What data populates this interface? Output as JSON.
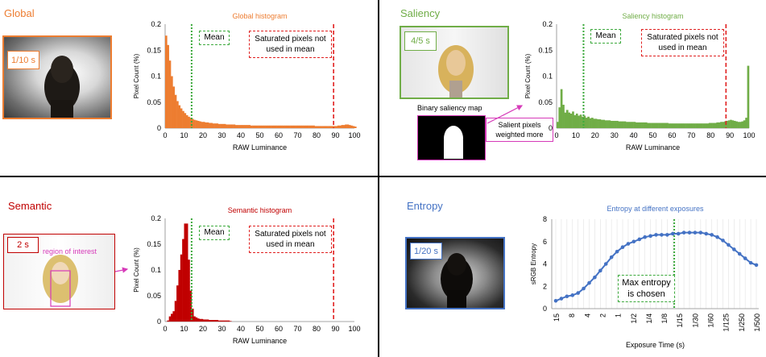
{
  "colors": {
    "global": "#ED7D31",
    "saliency": "#70AD47",
    "semantic": "#C00000",
    "entropy": "#4472C4",
    "magenta": "#D63AB9",
    "mean_line": "#3DAA3D",
    "saturation_line": "#E02020"
  },
  "global": {
    "title": "Global",
    "exposure": "1/10 s",
    "chart_title": "Global histogram",
    "mean_label": "Mean",
    "saturated_label_line1": "Saturated pixels not",
    "saturated_label_line2": "used in mean"
  },
  "saliency": {
    "title": "Saliency",
    "exposure": "4/5 s",
    "map_label": "Binary saliency map",
    "salient_line1": "Salient pixels",
    "salient_line2": "weighted more",
    "chart_title": "Saliency histogram",
    "mean_label": "Mean",
    "saturated_label_line1": "Saturated pixels not",
    "saturated_label_line2": "used in mean"
  },
  "semantic": {
    "title": "Semantic",
    "exposure": "2 s",
    "roi_label": "region of interest",
    "chart_title": "Semantic histogram",
    "mean_label": "Mean",
    "saturated_label_line1": "Saturated pixels not",
    "saturated_label_line2": "used in mean"
  },
  "entropy": {
    "title": "Entropy",
    "exposure": "1/20 s",
    "chart_title": "Entropy at different exposures",
    "max_label_line1": "Max entropy",
    "max_label_line2": "is chosen"
  },
  "chart_data": [
    {
      "type": "bar",
      "title": "Global histogram",
      "xlabel": "RAW Luminance",
      "ylabel": "Pixel Count (%)",
      "xlim": [
        0,
        100
      ],
      "ylim": [
        0,
        0.2
      ],
      "xticks": [
        0,
        10,
        20,
        30,
        40,
        50,
        60,
        70,
        80,
        90,
        100
      ],
      "yticks": [
        0,
        0.05,
        0.1,
        0.15,
        0.2
      ],
      "mean": 14,
      "saturation_threshold": 89,
      "x": [
        0,
        1,
        2,
        3,
        4,
        5,
        6,
        7,
        8,
        9,
        10,
        11,
        12,
        13,
        14,
        15,
        16,
        17,
        18,
        19,
        20,
        21,
        22,
        23,
        24,
        25,
        26,
        27,
        28,
        29,
        30,
        31,
        32,
        33,
        34,
        35,
        36,
        37,
        38,
        39,
        40,
        41,
        42,
        43,
        44,
        45,
        46,
        47,
        48,
        49,
        50,
        51,
        52,
        53,
        54,
        55,
        56,
        57,
        58,
        59,
        60,
        61,
        62,
        63,
        64,
        65,
        66,
        67,
        68,
        69,
        70,
        71,
        72,
        73,
        74,
        75,
        76,
        77,
        78,
        79,
        80,
        81,
        82,
        83,
        84,
        85,
        86,
        87,
        88,
        89,
        90,
        91,
        92,
        93,
        94,
        95,
        96,
        97,
        98,
        99,
        100
      ],
      "values": [
        0.178,
        0.16,
        0.13,
        0.1,
        0.08,
        0.064,
        0.052,
        0.044,
        0.038,
        0.033,
        0.029,
        0.025,
        0.022,
        0.02,
        0.018,
        0.016,
        0.015,
        0.014,
        0.013,
        0.012,
        0.012,
        0.011,
        0.011,
        0.01,
        0.01,
        0.009,
        0.009,
        0.009,
        0.008,
        0.008,
        0.008,
        0.008,
        0.007,
        0.007,
        0.007,
        0.007,
        0.007,
        0.006,
        0.006,
        0.006,
        0.006,
        0.006,
        0.006,
        0.006,
        0.006,
        0.005,
        0.005,
        0.005,
        0.005,
        0.005,
        0.005,
        0.005,
        0.005,
        0.005,
        0.005,
        0.005,
        0.005,
        0.005,
        0.005,
        0.005,
        0.005,
        0.005,
        0.005,
        0.005,
        0.005,
        0.005,
        0.005,
        0.005,
        0.005,
        0.005,
        0.005,
        0.005,
        0.005,
        0.005,
        0.005,
        0.005,
        0.005,
        0.005,
        0.005,
        0.004,
        0.004,
        0.004,
        0.004,
        0.004,
        0.004,
        0.004,
        0.004,
        0.004,
        0.004,
        0.004,
        0.004,
        0.005,
        0.005,
        0.006,
        0.006,
        0.007,
        0.007,
        0.006,
        0.005,
        0.004,
        0.003
      ]
    },
    {
      "type": "bar",
      "title": "Saliency histogram",
      "xlabel": "RAW Luminance",
      "ylabel": "Pixel Count (%)",
      "xlim": [
        0,
        100
      ],
      "ylim": [
        0,
        0.2
      ],
      "xticks": [
        0,
        10,
        20,
        30,
        40,
        50,
        60,
        70,
        80,
        90,
        100
      ],
      "yticks": [
        0,
        0.05,
        0.1,
        0.15,
        0.2
      ],
      "mean": 14,
      "saturation_threshold": 88,
      "x": [
        0,
        1,
        2,
        3,
        4,
        5,
        6,
        7,
        8,
        9,
        10,
        11,
        12,
        13,
        14,
        15,
        16,
        17,
        18,
        19,
        20,
        21,
        22,
        23,
        24,
        25,
        26,
        27,
        28,
        29,
        30,
        31,
        32,
        33,
        34,
        35,
        36,
        37,
        38,
        39,
        40,
        41,
        42,
        43,
        44,
        45,
        46,
        47,
        48,
        49,
        50,
        51,
        52,
        53,
        54,
        55,
        56,
        57,
        58,
        59,
        60,
        61,
        62,
        63,
        64,
        65,
        66,
        67,
        68,
        69,
        70,
        71,
        72,
        73,
        74,
        75,
        76,
        77,
        78,
        79,
        80,
        81,
        82,
        83,
        84,
        85,
        86,
        87,
        88,
        89,
        90,
        91,
        92,
        93,
        94,
        95,
        96,
        97,
        98,
        99,
        100
      ],
      "values": [
        0.012,
        0.04,
        0.075,
        0.045,
        0.03,
        0.035,
        0.03,
        0.028,
        0.032,
        0.025,
        0.028,
        0.024,
        0.026,
        0.022,
        0.024,
        0.02,
        0.022,
        0.019,
        0.02,
        0.018,
        0.018,
        0.017,
        0.017,
        0.016,
        0.016,
        0.015,
        0.015,
        0.015,
        0.014,
        0.014,
        0.014,
        0.014,
        0.013,
        0.013,
        0.013,
        0.013,
        0.012,
        0.012,
        0.012,
        0.012,
        0.012,
        0.011,
        0.011,
        0.011,
        0.011,
        0.011,
        0.011,
        0.01,
        0.01,
        0.01,
        0.01,
        0.01,
        0.01,
        0.01,
        0.01,
        0.01,
        0.01,
        0.01,
        0.009,
        0.009,
        0.009,
        0.009,
        0.009,
        0.009,
        0.009,
        0.009,
        0.009,
        0.009,
        0.009,
        0.009,
        0.009,
        0.009,
        0.009,
        0.009,
        0.009,
        0.009,
        0.009,
        0.009,
        0.009,
        0.01,
        0.01,
        0.01,
        0.01,
        0.011,
        0.011,
        0.012,
        0.012,
        0.013,
        0.014,
        0.015,
        0.016,
        0.015,
        0.014,
        0.013,
        0.012,
        0.012,
        0.013,
        0.015,
        0.02,
        0.12,
        0.0
      ]
    },
    {
      "type": "bar",
      "title": "Semantic histogram",
      "xlabel": "RAW Luminance",
      "ylabel": "Pixel Count (%)",
      "xlim": [
        0,
        100
      ],
      "ylim": [
        0,
        0.2
      ],
      "xticks": [
        0,
        10,
        20,
        30,
        40,
        50,
        60,
        70,
        80,
        90,
        100
      ],
      "yticks": [
        0,
        0.05,
        0.1,
        0.15,
        0.2
      ],
      "mean": 14,
      "saturation_threshold": 89,
      "x": [
        0,
        1,
        2,
        3,
        4,
        5,
        6,
        7,
        8,
        9,
        10,
        11,
        12,
        13,
        14,
        15,
        16,
        17,
        18,
        19,
        20,
        21,
        22,
        23,
        24,
        25,
        26,
        27,
        28,
        29,
        30,
        31,
        32,
        33,
        34,
        35
      ],
      "values": [
        0.0,
        0.002,
        0.01,
        0.015,
        0.02,
        0.04,
        0.07,
        0.1,
        0.13,
        0.16,
        0.19,
        0.19,
        0.12,
        0.06,
        0.025,
        0.01,
        0.008,
        0.006,
        0.005,
        0.005,
        0.004,
        0.004,
        0.004,
        0.003,
        0.003,
        0.003,
        0.003,
        0.003,
        0.002,
        0.002,
        0.002,
        0.002,
        0.002,
        0.002,
        0.001,
        0.0
      ]
    },
    {
      "type": "line",
      "title": "Entropy at different exposures",
      "xlabel": "Exposure Time (s)",
      "ylabel": "sRGB Entropy",
      "ylim": [
        0,
        8
      ],
      "yticks": [
        0,
        2,
        4,
        6,
        8
      ],
      "xticks": [
        "15",
        "8",
        "4",
        "2",
        "1",
        "1/2",
        "1/4",
        "1/8",
        "1/15",
        "1/30",
        "1/60",
        "1/125",
        "1/250",
        "1/500"
      ],
      "chosen_exposure": "1/20",
      "values": [
        0.7,
        0.9,
        1.1,
        1.2,
        1.4,
        1.8,
        2.3,
        2.8,
        3.4,
        4.0,
        4.6,
        5.1,
        5.5,
        5.8,
        6.0,
        6.2,
        6.4,
        6.5,
        6.6,
        6.6,
        6.6,
        6.7,
        6.7,
        6.8,
        6.8,
        6.8,
        6.8,
        6.7,
        6.6,
        6.4,
        6.1,
        5.7,
        5.3,
        4.9,
        4.5,
        4.1,
        3.9
      ]
    }
  ]
}
